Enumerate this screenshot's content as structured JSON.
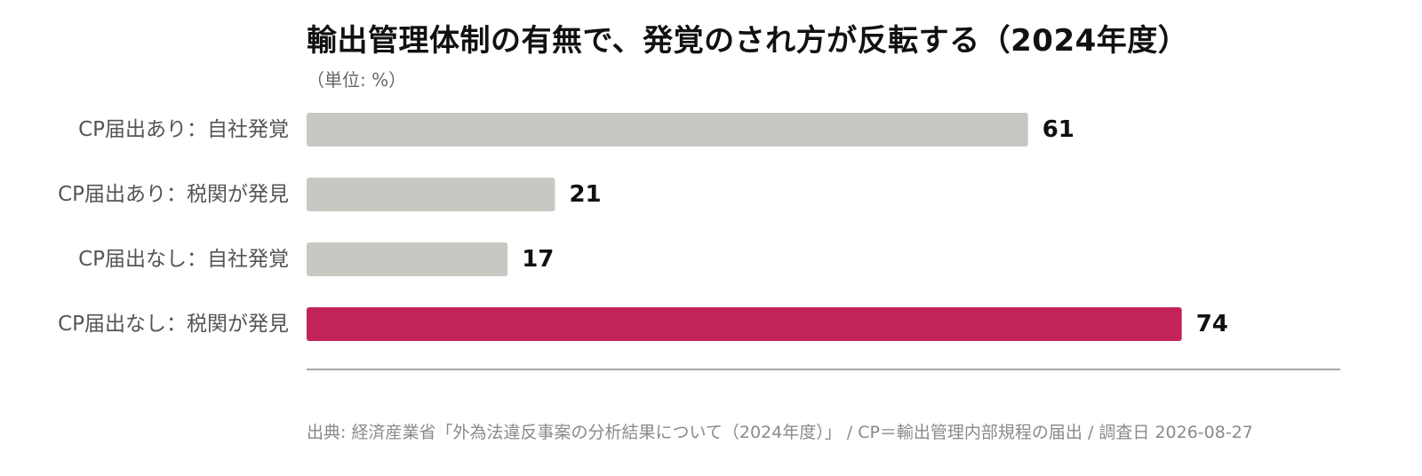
{
  "chart_data": {
    "type": "bar",
    "orientation": "horizontal",
    "title": "輸出管理体制の有無で、発覚のされ方が反転する（2024年度）",
    "subtitle": "（単位: %）",
    "categories": [
      "CP届出あり：自社発覚",
      "CP届出あり：税関が発見",
      "CP届出なし：自社発覚",
      "CP届出なし：税関が発見"
    ],
    "values": [
      61,
      21,
      17,
      74
    ],
    "highlight_index": 3,
    "xlim": [
      0,
      87.4
    ],
    "grid": false,
    "legend": "none"
  },
  "colors": {
    "bar_default": "#c8c8c3",
    "bar_highlight": "#c2245a",
    "axis_line": "#a8a8a8",
    "title": "#111111",
    "label": "#555555",
    "value": "#111111",
    "source": "#8a8a8a"
  },
  "source_note": "出典: 経済産業省「外為法違反事案の分析結果について（2024年度）」 / CP＝輸出管理内部規程の届出 / 調査日 2026-08-27"
}
